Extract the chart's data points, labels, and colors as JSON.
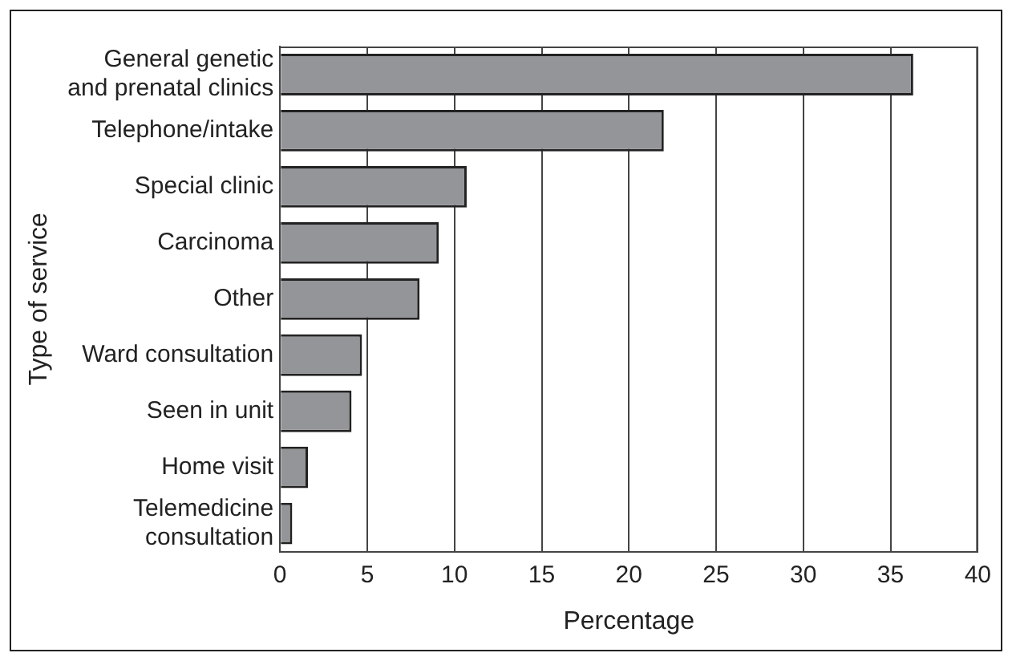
{
  "chart_data": {
    "type": "bar",
    "orientation": "horizontal",
    "xlabel": "Percentage",
    "ylabel": "Type of service",
    "categories": [
      "General genetic\nand prenatal clinics",
      "Telephone/intake",
      "Special clinic",
      "Carcinoma",
      "Other",
      "Ward consultation",
      "Seen in unit",
      "Home visit",
      "Telemedicine\nconsultation"
    ],
    "values": [
      36.3,
      22.0,
      10.7,
      9.1,
      8.0,
      4.7,
      4.1,
      1.6,
      0.7
    ],
    "color": "#939598",
    "xlim": [
      0,
      40
    ],
    "xticks": [
      0,
      5,
      10,
      15,
      20,
      25,
      30,
      35,
      40
    ],
    "grid": "x",
    "legend": false
  }
}
